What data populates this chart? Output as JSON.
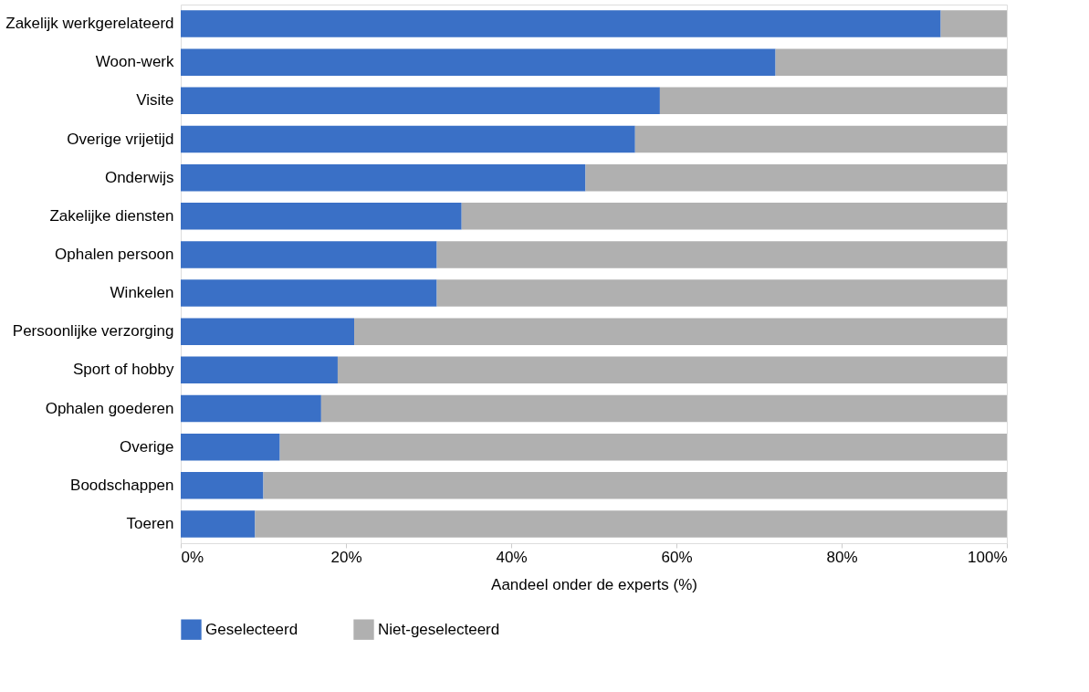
{
  "chart_data": {
    "type": "bar",
    "orientation": "horizontal",
    "stacked": true,
    "categories": [
      "Zakelijk werkgerelateerd",
      "Woon-werk",
      "Visite",
      "Overige vrijetijd",
      "Onderwijs",
      "Zakelijke diensten",
      "Ophalen persoon",
      "Winkelen",
      "Persoonlijke verzorging",
      "Sport of hobby",
      "Ophalen goederen",
      "Overige",
      "Boodschappen",
      "Toeren"
    ],
    "series": [
      {
        "name": "Geselecteerd",
        "color": "#3a70c6",
        "values": [
          92,
          72,
          58,
          55,
          49,
          34,
          31,
          31,
          21,
          19,
          17,
          12,
          10,
          9
        ]
      },
      {
        "name": "Niet-geselecteerd",
        "color": "#b0b0b0",
        "values": [
          8,
          28,
          42,
          45,
          51,
          66,
          69,
          69,
          79,
          81,
          83,
          88,
          90,
          91
        ]
      }
    ],
    "xlim": [
      0,
      100
    ],
    "xticks": [
      {
        "value": 0,
        "label": "0%"
      },
      {
        "value": 20,
        "label": "20%"
      },
      {
        "value": 40,
        "label": "40%"
      },
      {
        "value": 60,
        "label": "60%"
      },
      {
        "value": 80,
        "label": "80%"
      },
      {
        "value": 100,
        "label": "100%"
      }
    ],
    "xlabel": "Aandeel onder de experts (%)",
    "grid": false,
    "legend": "bottom"
  }
}
